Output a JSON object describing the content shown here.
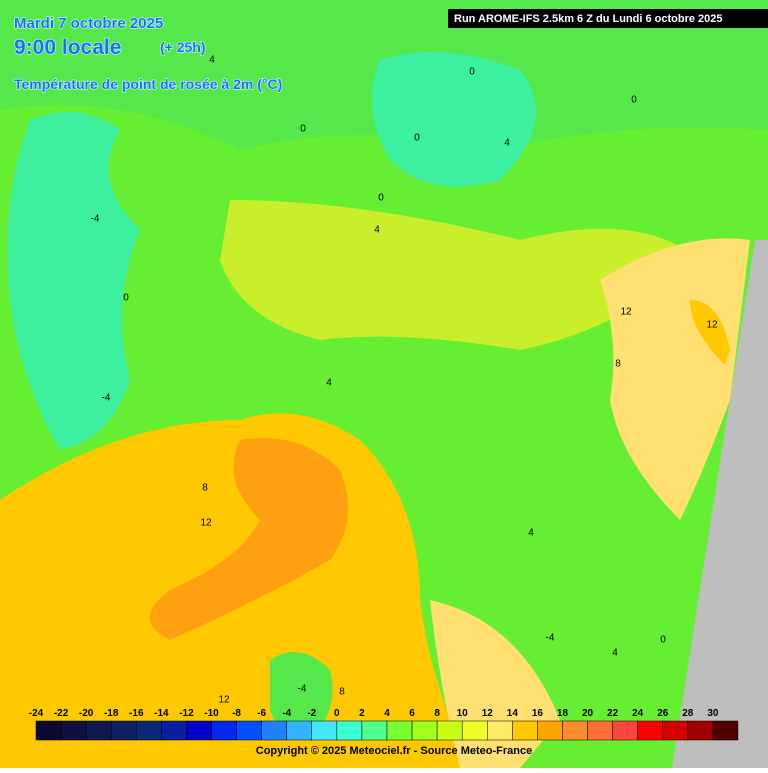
{
  "header": {
    "date": "Mardi 7 octobre 2025",
    "time": "9:00 locale",
    "lead": "(+ 25h)",
    "parameter": "Température de point de rosée à 2m (°C)"
  },
  "run": "Run AROME-IFS 2.5km 6 Z du Lundi 6 octobre 2025",
  "legend": {
    "labels": [
      -24,
      -22,
      -20,
      -18,
      -16,
      -14,
      -12,
      -10,
      -8,
      -6,
      -4,
      -2,
      0,
      2,
      4,
      6,
      8,
      10,
      12,
      14,
      16,
      18,
      20,
      22,
      24,
      26,
      28,
      30
    ],
    "colors": [
      "#0a0a32",
      "#0f1040",
      "#101850",
      "#102060",
      "#0a2878",
      "#0a1ea0",
      "#0000c8",
      "#0028f0",
      "#0050ff",
      "#1e82ff",
      "#32b4ff",
      "#46e6ff",
      "#3cffd2",
      "#50ff8c",
      "#78ff32",
      "#a0ff1e",
      "#c8ff14",
      "#f0ff28",
      "#ffeb64",
      "#ffc800",
      "#ffa500",
      "#ff8c28",
      "#ff6e32",
      "#ff463c",
      "#ff0000",
      "#d20000",
      "#a00000",
      "#500000"
    ]
  },
  "contour_labels": [
    0,
    0,
    4,
    0,
    0,
    0,
    4,
    -4,
    0,
    -4,
    4,
    12,
    12,
    8,
    4,
    8,
    12,
    4,
    -4,
    0,
    4,
    12,
    -4,
    8
  ],
  "copyright": "Copyright © 2025 Meteociel.fr - Source Meteo-France"
}
